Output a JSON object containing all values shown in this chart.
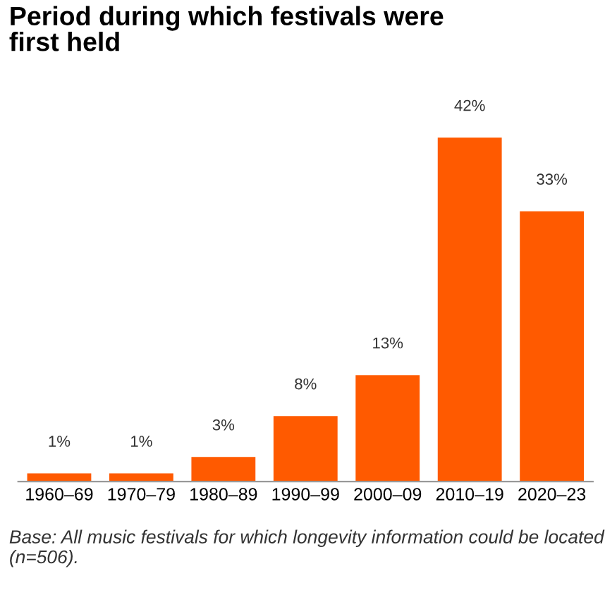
{
  "chart_data": {
    "type": "bar",
    "title": "Period during which festivals were\nfirst held",
    "categories": [
      "1960–69",
      "1970–79",
      "1980–89",
      "1990–99",
      "2000–09",
      "2010–19",
      "2020–23"
    ],
    "values": [
      1,
      1,
      3,
      8,
      13,
      42,
      33
    ],
    "value_labels": [
      "1%",
      "1%",
      "3%",
      "8%",
      "13%",
      "42%",
      "33%"
    ],
    "color": "#ff5a00",
    "annotations": [
      "Base: All music festivals for which longevity information could be located (n=506)."
    ]
  }
}
